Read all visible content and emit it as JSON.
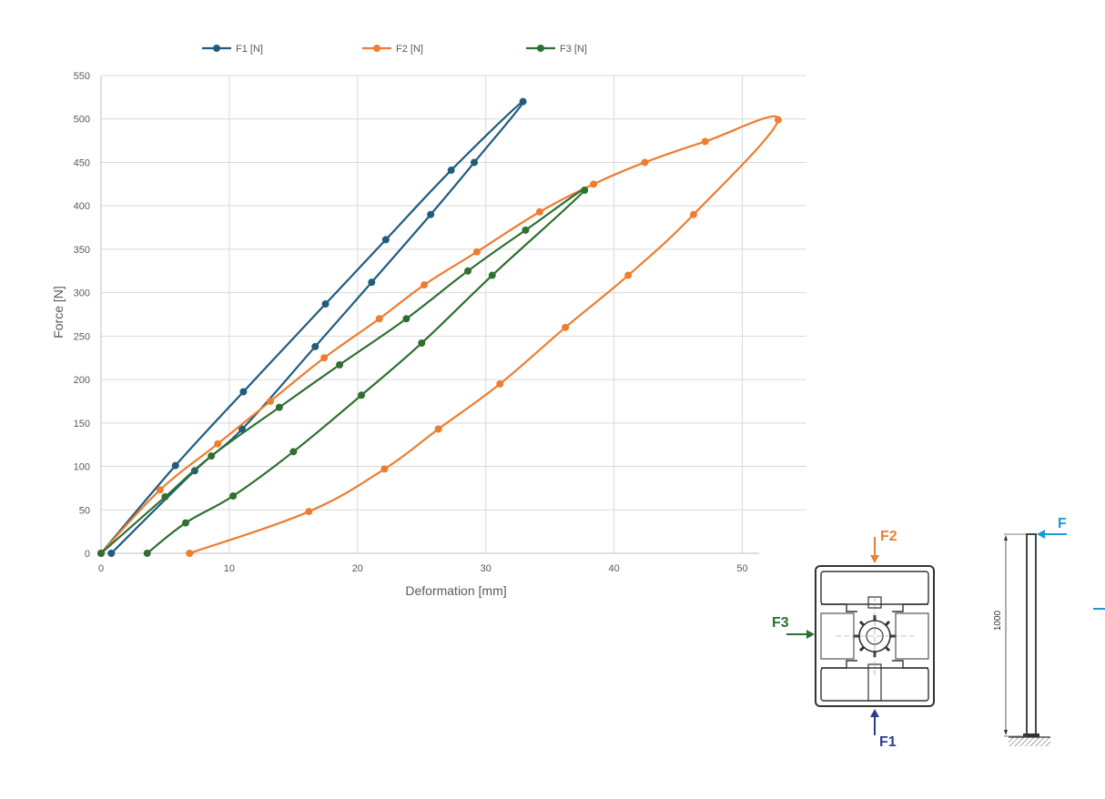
{
  "chart_data": {
    "type": "line",
    "title": "",
    "xlabel": "Deformation [mm]",
    "ylabel": "Force  [N]",
    "xlim": [
      0,
      52
    ],
    "ylim": [
      0,
      550
    ],
    "xticks": [
      0,
      10,
      20,
      30,
      40,
      50
    ],
    "yticks": [
      0,
      50,
      100,
      150,
      200,
      250,
      300,
      350,
      400,
      450,
      500,
      550
    ],
    "grid": true,
    "legend_position": "top",
    "series": [
      {
        "name": "F1 [N]",
        "color": "#1f5c7e",
        "x": [
          0,
          5.8,
          11.1,
          17.5,
          22.2,
          27.3,
          32.9,
          29.1,
          25.7,
          21.1,
          16.7,
          11.0,
          7.3,
          0.8
        ],
        "y": [
          0,
          101,
          186,
          287,
          361,
          441,
          520,
          450,
          390,
          312,
          238,
          143,
          95,
          0
        ]
      },
      {
        "name": "F2 [N]",
        "color": "#ed7d31",
        "x": [
          0,
          4.6,
          9.1,
          13.2,
          17.4,
          21.7,
          25.2,
          29.3,
          34.2,
          38.4,
          42.4,
          47.1,
          52.8,
          46.2,
          41.1,
          36.2,
          31.1,
          26.3,
          22.1,
          16.2,
          6.9
        ],
        "y": [
          0,
          73,
          126,
          175,
          225,
          270,
          309,
          347,
          393,
          425,
          450,
          474,
          499,
          390,
          320,
          260,
          195,
          143,
          97,
          48,
          0
        ]
      },
      {
        "name": "F3 [N]",
        "color": "#2e7032",
        "x": [
          0,
          5.0,
          8.6,
          13.9,
          18.6,
          23.8,
          28.6,
          33.1,
          37.7,
          30.5,
          25.0,
          20.3,
          15.0,
          10.3,
          6.6,
          3.6
        ],
        "y": [
          0,
          65,
          112,
          168,
          217,
          270,
          325,
          372,
          418,
          320,
          242,
          182,
          117,
          66,
          35,
          0
        ]
      }
    ]
  },
  "diagram": {
    "f2_label": "F2",
    "f3_label": "F3",
    "f1_label": "F1",
    "f_label": "F",
    "length_label": "1000",
    "colors": {
      "f1": "#2e3d8f",
      "f2": "#ed7d31",
      "f3": "#2e7032",
      "f": "#1a9ad6"
    }
  }
}
